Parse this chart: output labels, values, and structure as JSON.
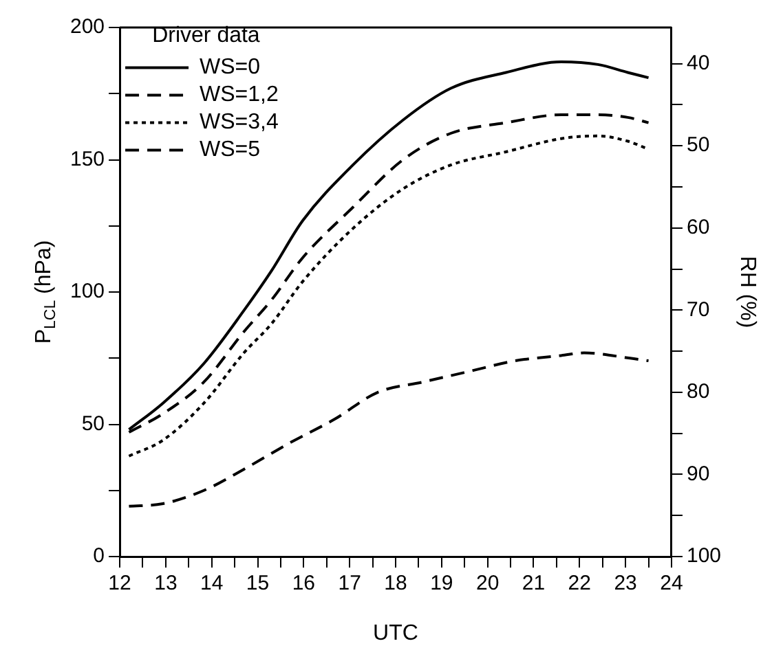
{
  "chart_data": {
    "type": "line",
    "xlabel": "UTC",
    "ylabel": "P$_{LCL}$ (hPa)",
    "y2label": "RH (%)",
    "legend_title": "Driver data",
    "legend": "top left",
    "grid": false,
    "marker": "none",
    "xlim": [
      12,
      24
    ],
    "xticks": [
      12,
      {
        "value": 12.5,
        "label": null
      },
      13,
      {
        "value": 13.5,
        "label": null
      },
      14,
      {
        "value": 14.5,
        "label": null
      },
      15,
      {
        "value": 15.5,
        "label": null
      },
      16,
      {
        "value": 16.5,
        "label": null
      },
      17,
      {
        "value": 17.5,
        "label": null
      },
      18,
      {
        "value": 18.5,
        "label": null
      },
      19,
      {
        "value": 19.5,
        "label": null
      },
      20,
      {
        "value": 20.5,
        "label": null
      },
      21,
      {
        "value": 21.5,
        "label": null
      },
      22,
      {
        "value": 22.5,
        "label": null
      },
      23,
      {
        "value": 23.5,
        "label": null
      },
      24
    ],
    "ylim": [
      0,
      200
    ],
    "yticks": [
      0,
      {
        "value": 25,
        "label": null
      },
      50,
      {
        "value": 75,
        "label": null
      },
      100,
      {
        "value": 125,
        "label": null
      },
      150,
      {
        "value": 175,
        "label": null
      },
      200
    ],
    "y2lim": [
      100,
      35.6
    ],
    "y2ticks": [
      40,
      {
        "value": 45,
        "label": null
      },
      50,
      {
        "value": 55,
        "label": null
      },
      60,
      {
        "value": 65,
        "label": null
      },
      70,
      {
        "value": 75,
        "label": null
      },
      80,
      {
        "value": 85,
        "label": null
      },
      90,
      {
        "value": 95,
        "label": null
      },
      100
    ],
    "x": [
      12.2,
      12.94,
      13.83,
      14.7,
      15.3,
      15.98,
      17.07,
      18.16,
      19.2,
      20.4,
      21.6,
      22.4,
      23.05,
      23.5
    ],
    "series": [
      {
        "name": "WS=0",
        "color": "#000000",
        "line_style": "solid",
        "values": [
          48,
          58,
          73,
          93,
          108,
          127,
          148,
          165,
          177,
          183,
          187,
          186,
          183,
          181
        ]
      },
      {
        "name": "WS=1,2",
        "color": "#000000",
        "line_style": "dashed",
        "values": [
          47,
          54,
          66,
          85,
          97,
          113,
          132,
          150,
          160,
          164,
          167,
          167,
          166,
          164
        ]
      },
      {
        "name": "WS=3,4",
        "color": "#000000",
        "line_style": "dotted",
        "values": [
          38,
          44,
          58,
          77,
          88,
          104,
          124,
          139,
          148,
          153,
          158,
          159,
          157,
          154
        ]
      },
      {
        "name": "WS=5",
        "color": "#000000",
        "line_style": "dashed",
        "x": [
          12.2,
          12.94,
          13.83,
          14.7,
          15.7,
          16.68,
          17.6,
          18.6,
          19.6,
          20.6,
          21.6,
          22.1,
          23.1,
          23.5
        ],
        "values": [
          19,
          20,
          25,
          33,
          43,
          52,
          62,
          66,
          70,
          74,
          76,
          77,
          75,
          74
        ]
      }
    ]
  }
}
